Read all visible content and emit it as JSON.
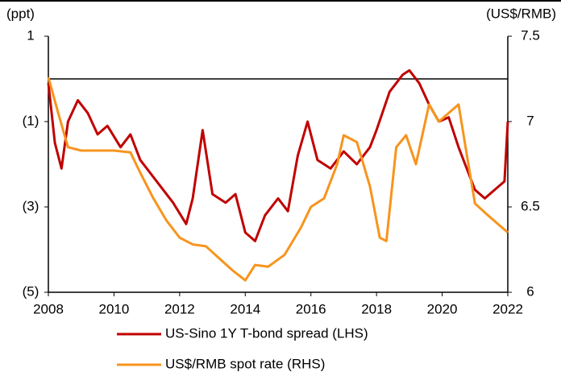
{
  "chart_data": {
    "type": "line",
    "ylabel": "(ppt)",
    "y2label": "(US$/RMB)",
    "xlim": [
      2008,
      2022
    ],
    "xticks": [
      2008,
      2010,
      2012,
      2014,
      2016,
      2018,
      2020,
      2022
    ],
    "ylim": [
      -5,
      1
    ],
    "yticks": [
      {
        "value": -5,
        "label": "(5)"
      },
      {
        "value": -3,
        "label": "(3)"
      },
      {
        "value": -1,
        "label": "(1)"
      },
      1
    ],
    "yticks_negative_color": "#e8302a",
    "y2lim": [
      6,
      7.5
    ],
    "y2ticks": [
      6,
      6.5,
      7,
      7.5
    ],
    "series": [
      {
        "name": "US-Sino 1Y T-bond spread (LHS)",
        "color": "#c00000",
        "axis": "y",
        "x": [
          2008.0,
          2008.2,
          2008.4,
          2008.6,
          2008.9,
          2009.2,
          2009.5,
          2009.8,
          2010.2,
          2010.5,
          2010.8,
          2011.2,
          2011.5,
          2011.8,
          2012.2,
          2012.4,
          2012.7,
          2013.0,
          2013.4,
          2013.7,
          2014.0,
          2014.3,
          2014.6,
          2015.0,
          2015.3,
          2015.6,
          2015.9,
          2016.2,
          2016.6,
          2017.0,
          2017.4,
          2017.8,
          2018.0,
          2018.4,
          2018.8,
          2019.0,
          2019.3,
          2019.6,
          2019.9,
          2020.2,
          2020.5,
          2020.8,
          2021.0,
          2021.3,
          2021.6,
          2021.9,
          2022.0
        ],
        "values": [
          -0.1,
          -1.5,
          -2.1,
          -1.0,
          -0.5,
          -0.8,
          -1.3,
          -1.1,
          -1.6,
          -1.3,
          -1.9,
          -2.3,
          -2.6,
          -2.9,
          -3.4,
          -2.8,
          -1.2,
          -2.7,
          -2.9,
          -2.7,
          -3.6,
          -3.8,
          -3.2,
          -2.8,
          -3.1,
          -1.8,
          -1.0,
          -1.9,
          -2.1,
          -1.7,
          -2.0,
          -1.6,
          -1.2,
          -0.3,
          0.1,
          0.2,
          -0.1,
          -0.6,
          -1.0,
          -0.9,
          -1.6,
          -2.2,
          -2.6,
          -2.8,
          -2.6,
          -2.4,
          -1.0
        ]
      },
      {
        "name": "US$/RMB spot rate (RHS)",
        "color": "#f7941d",
        "axis": "y2",
        "x": [
          2008.0,
          2008.3,
          2008.6,
          2009.0,
          2010.0,
          2010.5,
          2010.8,
          2011.2,
          2011.6,
          2012.0,
          2012.4,
          2012.8,
          2013.2,
          2013.6,
          2014.0,
          2014.3,
          2014.7,
          2015.2,
          2015.7,
          2016.0,
          2016.4,
          2016.8,
          2017.0,
          2017.4,
          2017.8,
          2018.1,
          2018.3,
          2018.6,
          2018.9,
          2019.2,
          2019.6,
          2019.9,
          2020.2,
          2020.5,
          2020.8,
          2021.0,
          2021.4,
          2021.7,
          2022.0
        ],
        "values": [
          7.26,
          7.05,
          6.85,
          6.83,
          6.83,
          6.82,
          6.7,
          6.55,
          6.42,
          6.32,
          6.28,
          6.27,
          6.2,
          6.13,
          6.07,
          6.16,
          6.15,
          6.22,
          6.38,
          6.5,
          6.55,
          6.75,
          6.92,
          6.88,
          6.62,
          6.32,
          6.3,
          6.85,
          6.92,
          6.75,
          7.1,
          7.0,
          7.05,
          7.1,
          6.75,
          6.52,
          6.45,
          6.4,
          6.35
        ]
      }
    ]
  }
}
